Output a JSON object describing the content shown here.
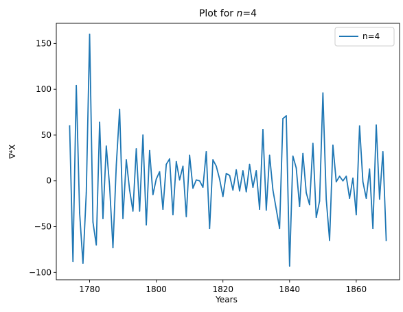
{
  "chart_data": {
    "type": "line",
    "title": "Plot for n=4",
    "title_prefix": "Plot for ",
    "title_var": "n",
    "title_suffix": "=4",
    "xlabel": "Years",
    "ylabel": "∇⁴X",
    "xlim": [
      1770,
      1873
    ],
    "ylim": [
      -108,
      172
    ],
    "xticks": [
      1780,
      1800,
      1820,
      1840,
      1860
    ],
    "yticks": [
      -100,
      -50,
      0,
      50,
      100,
      150
    ],
    "grid": false,
    "legend_position": "upper right",
    "series": [
      {
        "name": "n=4",
        "color": "#1f77b4",
        "x": [
          1774,
          1775,
          1776,
          1777,
          1778,
          1779,
          1780,
          1781,
          1782,
          1783,
          1784,
          1785,
          1786,
          1787,
          1788,
          1789,
          1790,
          1791,
          1792,
          1793,
          1794,
          1795,
          1796,
          1797,
          1798,
          1799,
          1800,
          1801,
          1802,
          1803,
          1804,
          1805,
          1806,
          1807,
          1808,
          1809,
          1810,
          1811,
          1812,
          1813,
          1814,
          1815,
          1816,
          1817,
          1818,
          1819,
          1820,
          1821,
          1822,
          1823,
          1824,
          1825,
          1826,
          1827,
          1828,
          1829,
          1830,
          1831,
          1832,
          1833,
          1834,
          1835,
          1836,
          1837,
          1838,
          1839,
          1840,
          1841,
          1842,
          1843,
          1844,
          1845,
          1846,
          1847,
          1848,
          1849,
          1850,
          1851,
          1852,
          1853,
          1854,
          1855,
          1856,
          1857,
          1858,
          1859,
          1860,
          1861,
          1862,
          1863,
          1864,
          1865,
          1866,
          1867,
          1868,
          1869
        ],
        "values": [
          60,
          -88,
          104,
          -35,
          -90,
          -13,
          160,
          -45,
          -70,
          64,
          -41,
          38,
          -6,
          -73,
          17,
          78,
          -41,
          23,
          -10,
          -33,
          35,
          -33,
          50,
          -48,
          33,
          -15,
          2,
          10,
          -31,
          18,
          24,
          -37,
          21,
          1,
          16,
          -39,
          28,
          -8,
          1,
          0,
          -7,
          32,
          -52,
          23,
          16,
          2,
          -17,
          8,
          6,
          -10,
          12,
          -11,
          11,
          -12,
          18,
          -7,
          11,
          -31,
          56,
          -32,
          28,
          -10,
          -31,
          -52,
          68,
          71,
          -93,
          27,
          14,
          -28,
          30,
          -13,
          -26,
          41,
          -40,
          -22,
          96,
          -20,
          -65,
          39,
          -1,
          5,
          0,
          5,
          -19,
          3,
          -37,
          60,
          -1,
          -19,
          13,
          -52,
          61,
          -20,
          32,
          -65
        ]
      }
    ]
  }
}
